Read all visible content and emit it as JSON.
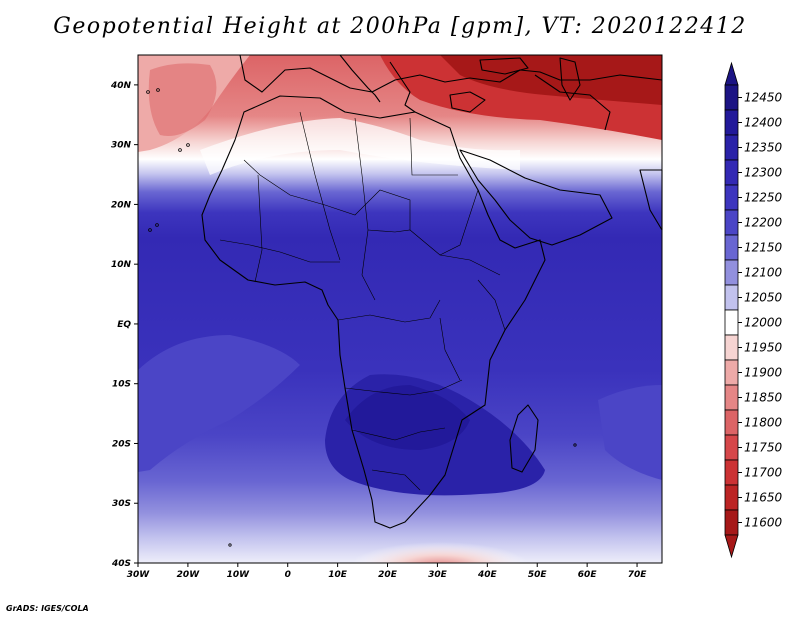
{
  "title": "Geopotential Height at 200hPa [gpm], VT: 2020122412",
  "credit": "GrADS: IGES/COLA",
  "map": {
    "lon_range": [
      -30,
      75
    ],
    "lat_range": [
      -40,
      45
    ],
    "lon_ticks": [
      {
        "value": -30,
        "label": "30W"
      },
      {
        "value": -20,
        "label": "20W"
      },
      {
        "value": -10,
        "label": "10W"
      },
      {
        "value": 0,
        "label": "0"
      },
      {
        "value": 10,
        "label": "10E"
      },
      {
        "value": 20,
        "label": "20E"
      },
      {
        "value": 30,
        "label": "30E"
      },
      {
        "value": 40,
        "label": "40E"
      },
      {
        "value": 50,
        "label": "50E"
      },
      {
        "value": 60,
        "label": "60E"
      },
      {
        "value": 70,
        "label": "70E"
      }
    ],
    "lat_ticks": [
      {
        "value": 40,
        "label": "40N"
      },
      {
        "value": 30,
        "label": "30N"
      },
      {
        "value": 20,
        "label": "20N"
      },
      {
        "value": 10,
        "label": "10N"
      },
      {
        "value": 0,
        "label": "EQ"
      },
      {
        "value": -10,
        "label": "10S"
      },
      {
        "value": -20,
        "label": "20S"
      },
      {
        "value": -30,
        "label": "30S"
      },
      {
        "value": -40,
        "label": "40S"
      }
    ]
  },
  "colorbar": {
    "levels": [
      {
        "label": "12450",
        "color": "#1c1484"
      },
      {
        "label": "12400",
        "color": "#22199a"
      },
      {
        "label": "12350",
        "color": "#2a22a8"
      },
      {
        "label": "12300",
        "color": "#3329b4"
      },
      {
        "label": "12250",
        "color": "#3d35be"
      },
      {
        "label": "12200",
        "color": "#4b45c6"
      },
      {
        "label": "12150",
        "color": "#6966d2"
      },
      {
        "label": "12100",
        "color": "#9290de"
      },
      {
        "label": "12050",
        "color": "#c2c2ee"
      },
      {
        "label": "12000",
        "color": "#ffffff"
      },
      {
        "label": "11950",
        "color": "#f6d4d2"
      },
      {
        "label": "11900",
        "color": "#eeaaa8"
      },
      {
        "label": "11850",
        "color": "#e58686"
      },
      {
        "label": "11800",
        "color": "#dc6466"
      },
      {
        "label": "11750",
        "color": "#d6474a"
      },
      {
        "label": "11700",
        "color": "#cc3234"
      },
      {
        "label": "11650",
        "color": "#bc2424"
      },
      {
        "label": "11600",
        "color": "#a61818"
      }
    ]
  }
}
